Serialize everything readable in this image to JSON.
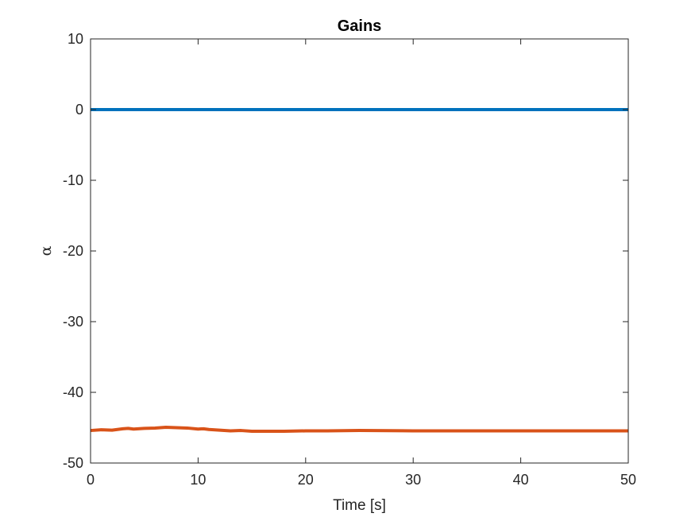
{
  "chart_data": {
    "type": "line",
    "title": "Gains",
    "xlabel": "Time [s]",
    "ylabel": "α",
    "xlim": [
      0,
      50
    ],
    "ylim": [
      -50,
      10
    ],
    "xticks": [
      0,
      10,
      20,
      30,
      40,
      50
    ],
    "yticks": [
      10,
      0,
      -10,
      -20,
      -30,
      -40,
      -50
    ],
    "xtick_labels": [
      "0",
      "10",
      "20",
      "30",
      "40",
      "50"
    ],
    "ytick_labels": [
      "10",
      "0",
      "-10",
      "-20",
      "-30",
      "-40",
      "-50"
    ],
    "grid": false,
    "series": [
      {
        "color": "#0072BD",
        "x": [
          0,
          50
        ],
        "y": [
          0,
          0
        ]
      },
      {
        "color": "#D95319",
        "x": [
          0,
          1,
          2,
          3,
          3.5,
          4,
          5,
          6,
          7,
          8,
          9,
          10,
          10.5,
          11,
          12,
          13,
          14,
          15,
          16,
          18,
          20,
          22,
          25,
          30,
          35,
          40,
          45,
          50
        ],
        "y": [
          -45.4,
          -45.3,
          -45.35,
          -45.15,
          -45.1,
          -45.2,
          -45.1,
          -45.05,
          -44.95,
          -45.0,
          -45.05,
          -45.2,
          -45.15,
          -45.25,
          -45.35,
          -45.45,
          -45.4,
          -45.5,
          -45.5,
          -45.5,
          -45.45,
          -45.45,
          -45.4,
          -45.45,
          -45.45,
          -45.45,
          -45.45,
          -45.45
        ]
      }
    ]
  }
}
